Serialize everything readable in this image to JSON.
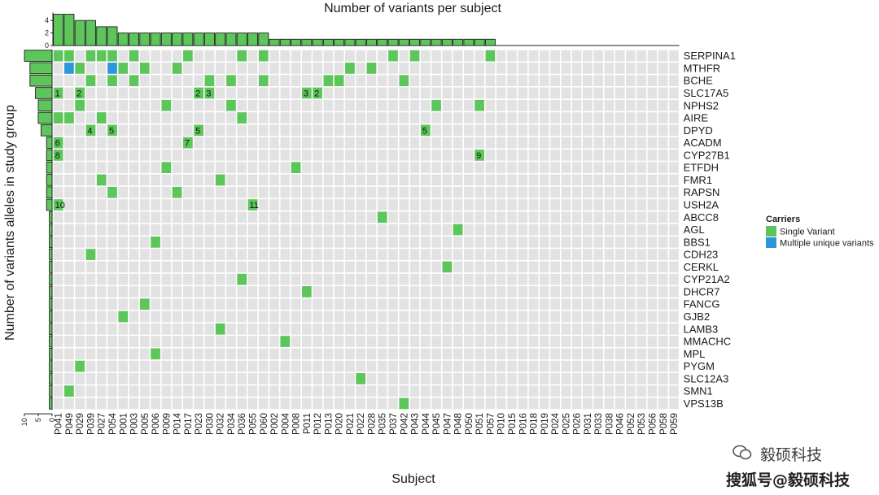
{
  "chart_data": {
    "type": "heatmap",
    "title": "Number of variants per subject",
    "xlabel": "Subject",
    "ylabel": "Number of variants alleles in study group",
    "subjects": [
      "P041",
      "P049",
      "P029",
      "P039",
      "P027",
      "P054",
      "P001",
      "P003",
      "P005",
      "P006",
      "P009",
      "P014",
      "P017",
      "P023",
      "P030",
      "P032",
      "P034",
      "P036",
      "P055",
      "P060",
      "P002",
      "P004",
      "P008",
      "P011",
      "P012",
      "P013",
      "P020",
      "P021",
      "P022",
      "P028",
      "P035",
      "P037",
      "P042",
      "P043",
      "P044",
      "P045",
      "P047",
      "P048",
      "P050",
      "P051",
      "P057",
      "P010",
      "P015",
      "P016",
      "P018",
      "P019",
      "P024",
      "P025",
      "P026",
      "P031",
      "P033",
      "P038",
      "P046",
      "P052",
      "P053",
      "P056",
      "P058",
      "P059"
    ],
    "genes": [
      "SERPINA1",
      "MTHFR",
      "BCHE",
      "SLC17A5",
      "NPHS2",
      "AIRE",
      "DPYD",
      "ACADM",
      "CYP27B1",
      "ETFDH",
      "FMR1",
      "RAPSN",
      "USH2A",
      "ABCC8",
      "AGL",
      "BBS1",
      "CDH23",
      "CERKL",
      "CYP21A2",
      "DHCR7",
      "FANCG",
      "GJB2",
      "LAMB3",
      "MMACHC",
      "MPL",
      "PYGM",
      "SLC12A3",
      "SMN1",
      "VPS13B"
    ],
    "variants_per_subject": [
      5,
      5,
      4,
      4,
      3,
      3,
      2,
      2,
      2,
      2,
      2,
      2,
      2,
      2,
      2,
      2,
      2,
      2,
      2,
      2,
      1,
      1,
      1,
      1,
      1,
      1,
      1,
      1,
      1,
      1,
      1,
      1,
      1,
      1,
      1,
      1,
      1,
      1,
      1,
      1,
      1,
      0,
      0,
      0,
      0,
      0,
      0,
      0,
      0,
      0,
      0,
      0,
      0,
      0,
      0,
      0,
      0,
      0
    ],
    "top_axis_ticks": [
      "0",
      "2",
      "4"
    ],
    "alleles_per_gene": [
      10,
      8,
      8,
      6,
      5,
      5,
      4,
      2,
      2,
      2,
      2,
      2,
      2,
      1,
      1,
      1,
      1,
      1,
      1,
      1,
      1,
      1,
      1,
      1,
      1,
      1,
      1,
      1,
      1
    ],
    "left_axis_ticks": [
      "10",
      "5",
      "0"
    ],
    "cells": [
      {
        "subject": "P041",
        "gene": "SERPINA1",
        "type": "single"
      },
      {
        "subject": "P049",
        "gene": "SERPINA1",
        "type": "single"
      },
      {
        "subject": "P039",
        "gene": "SERPINA1",
        "type": "single"
      },
      {
        "subject": "P027",
        "gene": "SERPINA1",
        "type": "single"
      },
      {
        "subject": "P054",
        "gene": "SERPINA1",
        "type": "single"
      },
      {
        "subject": "P003",
        "gene": "SERPINA1",
        "type": "single"
      },
      {
        "subject": "P017",
        "gene": "SERPINA1",
        "type": "single"
      },
      {
        "subject": "P036",
        "gene": "SERPINA1",
        "type": "single"
      },
      {
        "subject": "P060",
        "gene": "SERPINA1",
        "type": "single"
      },
      {
        "subject": "P037",
        "gene": "SERPINA1",
        "type": "single"
      },
      {
        "subject": "P043",
        "gene": "SERPINA1",
        "type": "single"
      },
      {
        "subject": "P057",
        "gene": "SERPINA1",
        "type": "single"
      },
      {
        "subject": "P049",
        "gene": "MTHFR",
        "type": "multiple"
      },
      {
        "subject": "P029",
        "gene": "MTHFR",
        "type": "single"
      },
      {
        "subject": "P054",
        "gene": "MTHFR",
        "type": "multiple"
      },
      {
        "subject": "P001",
        "gene": "MTHFR",
        "type": "single"
      },
      {
        "subject": "P005",
        "gene": "MTHFR",
        "type": "single"
      },
      {
        "subject": "P014",
        "gene": "MTHFR",
        "type": "single"
      },
      {
        "subject": "P021",
        "gene": "MTHFR",
        "type": "single"
      },
      {
        "subject": "P028",
        "gene": "MTHFR",
        "type": "single"
      },
      {
        "subject": "P039",
        "gene": "BCHE",
        "type": "single"
      },
      {
        "subject": "P054",
        "gene": "BCHE",
        "type": "single"
      },
      {
        "subject": "P003",
        "gene": "BCHE",
        "type": "single"
      },
      {
        "subject": "P030",
        "gene": "BCHE",
        "type": "single"
      },
      {
        "subject": "P034",
        "gene": "BCHE",
        "type": "single"
      },
      {
        "subject": "P060",
        "gene": "BCHE",
        "type": "single"
      },
      {
        "subject": "P013",
        "gene": "BCHE",
        "type": "single"
      },
      {
        "subject": "P020",
        "gene": "BCHE",
        "type": "single"
      },
      {
        "subject": "P042",
        "gene": "BCHE",
        "type": "single"
      },
      {
        "subject": "P041",
        "gene": "SLC17A5",
        "type": "single",
        "label": "1"
      },
      {
        "subject": "P029",
        "gene": "SLC17A5",
        "type": "single",
        "label": "2"
      },
      {
        "subject": "P023",
        "gene": "SLC17A5",
        "type": "single",
        "label": "2"
      },
      {
        "subject": "P030",
        "gene": "SLC17A5",
        "type": "single",
        "label": "3"
      },
      {
        "subject": "P011",
        "gene": "SLC17A5",
        "type": "single",
        "label": "3"
      },
      {
        "subject": "P012",
        "gene": "SLC17A5",
        "type": "single",
        "label": "2"
      },
      {
        "subject": "P029",
        "gene": "NPHS2",
        "type": "single"
      },
      {
        "subject": "P009",
        "gene": "NPHS2",
        "type": "single"
      },
      {
        "subject": "P034",
        "gene": "NPHS2",
        "type": "single"
      },
      {
        "subject": "P045",
        "gene": "NPHS2",
        "type": "single"
      },
      {
        "subject": "P051",
        "gene": "NPHS2",
        "type": "single"
      },
      {
        "subject": "P041",
        "gene": "AIRE",
        "type": "single"
      },
      {
        "subject": "P049",
        "gene": "AIRE",
        "type": "single"
      },
      {
        "subject": "P027",
        "gene": "AIRE",
        "type": "single"
      },
      {
        "subject": "P036",
        "gene": "AIRE",
        "type": "single"
      },
      {
        "subject": "P039",
        "gene": "DPYD",
        "type": "single",
        "label": "4"
      },
      {
        "subject": "P054",
        "gene": "DPYD",
        "type": "single",
        "label": "5"
      },
      {
        "subject": "P023",
        "gene": "DPYD",
        "type": "single",
        "label": "5"
      },
      {
        "subject": "P044",
        "gene": "DPYD",
        "type": "single",
        "label": "5"
      },
      {
        "subject": "P041",
        "gene": "ACADM",
        "type": "single",
        "label": "6"
      },
      {
        "subject": "P017",
        "gene": "ACADM",
        "type": "single",
        "label": "7"
      },
      {
        "subject": "P041",
        "gene": "CYP27B1",
        "type": "single",
        "label": "8"
      },
      {
        "subject": "P051",
        "gene": "CYP27B1",
        "type": "single",
        "label": "9"
      },
      {
        "subject": "P009",
        "gene": "ETFDH",
        "type": "single"
      },
      {
        "subject": "P008",
        "gene": "ETFDH",
        "type": "single"
      },
      {
        "subject": "P027",
        "gene": "FMR1",
        "type": "single"
      },
      {
        "subject": "P032",
        "gene": "FMR1",
        "type": "single"
      },
      {
        "subject": "P054",
        "gene": "RAPSN",
        "type": "single"
      },
      {
        "subject": "P014",
        "gene": "RAPSN",
        "type": "single"
      },
      {
        "subject": "P041",
        "gene": "USH2A",
        "type": "single",
        "label": "10"
      },
      {
        "subject": "P055",
        "gene": "USH2A",
        "type": "single",
        "label": "11"
      },
      {
        "subject": "P035",
        "gene": "ABCC8",
        "type": "single"
      },
      {
        "subject": "P048",
        "gene": "AGL",
        "type": "single"
      },
      {
        "subject": "P006",
        "gene": "BBS1",
        "type": "single"
      },
      {
        "subject": "P039",
        "gene": "CDH23",
        "type": "single"
      },
      {
        "subject": "P047",
        "gene": "CERKL",
        "type": "single"
      },
      {
        "subject": "P036",
        "gene": "CYP21A2",
        "type": "single"
      },
      {
        "subject": "P011",
        "gene": "DHCR7",
        "type": "single"
      },
      {
        "subject": "P005",
        "gene": "FANCG",
        "type": "single"
      },
      {
        "subject": "P001",
        "gene": "GJB2",
        "type": "single"
      },
      {
        "subject": "P032",
        "gene": "LAMB3",
        "type": "single"
      },
      {
        "subject": "P004",
        "gene": "MMACHC",
        "type": "single"
      },
      {
        "subject": "P006",
        "gene": "MPL",
        "type": "single"
      },
      {
        "subject": "P029",
        "gene": "PYGM",
        "type": "single"
      },
      {
        "subject": "P022",
        "gene": "SLC12A3",
        "type": "single"
      },
      {
        "subject": "P049",
        "gene": "SMN1",
        "type": "single"
      },
      {
        "subject": "P042",
        "gene": "VPS13B",
        "type": "single"
      }
    ],
    "legend": {
      "title": "Carriers",
      "position": "right",
      "items": [
        {
          "key": "single",
          "label": "Single Variant",
          "color": "#5dc65a"
        },
        {
          "key": "multiple",
          "label": "Multiple unique variants",
          "color": "#2d96dd"
        }
      ]
    },
    "colors": {
      "empty_cell": "#e2e2e2",
      "bar_fill": "#5dc65a",
      "bar_stroke": "#1e1e1e",
      "single": "#5dc65a",
      "multiple": "#2d96dd"
    }
  },
  "watermark": {
    "line1": "毅硕科技",
    "line2": "搜狐号@毅硕科技"
  }
}
